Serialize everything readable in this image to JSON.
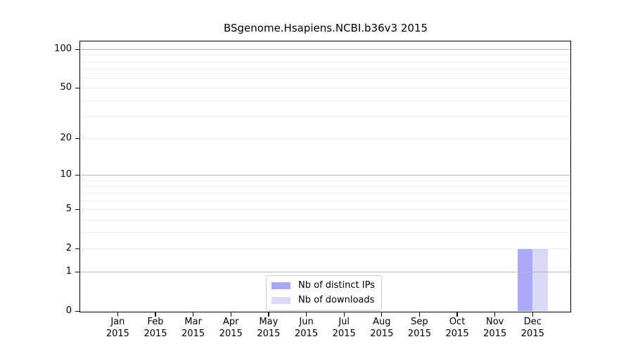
{
  "title": "BSgenome.Hsapiens.NCBI.b36v3 2015",
  "chart_data": {
    "type": "bar",
    "title": "BSgenome.Hsapiens.NCBI.b36v3 2015",
    "categories": [
      "Jan 2015",
      "Feb 2015",
      "Mar 2015",
      "Apr 2015",
      "May 2015",
      "Jun 2015",
      "Jul 2015",
      "Aug 2015",
      "Sep 2015",
      "Oct 2015",
      "Nov 2015",
      "Dec 2015"
    ],
    "x_tick_months": [
      "Jan",
      "Feb",
      "Mar",
      "Apr",
      "May",
      "Jun",
      "Jul",
      "Aug",
      "Sep",
      "Oct",
      "Nov",
      "Dec"
    ],
    "x_tick_year": "2015",
    "series": [
      {
        "name": "Nb of distinct IPs",
        "color": "#a9a9f7",
        "values": [
          0,
          0,
          0,
          0,
          0,
          0,
          0,
          0,
          0,
          0,
          0,
          2
        ]
      },
      {
        "name": "Nb of downloads",
        "color": "#d9d9f7",
        "values": [
          0,
          0,
          0,
          0,
          0,
          0,
          0,
          0,
          0,
          0,
          0,
          2
        ]
      }
    ],
    "xlabel": "",
    "ylabel": "",
    "y_scale": "log1p",
    "ylim": [
      0,
      115
    ],
    "y_tick_values": [
      0,
      1,
      2,
      5,
      10,
      20,
      50,
      100
    ],
    "y_major_gridlines": [
      1,
      10,
      100
    ],
    "y_minor_gridlines": [
      2,
      3,
      4,
      5,
      6,
      7,
      8,
      9,
      20,
      30,
      40,
      50,
      60,
      70,
      80,
      90
    ],
    "grid": "on",
    "legend_position": "bottom-center"
  },
  "colors": {
    "bar_distinct_ips": "#a9a9f7",
    "bar_downloads": "#d9d9f7",
    "major_grid": "#b9b9b9",
    "minor_grid": "#ececec",
    "axis": "#000000",
    "legend_border": "#cccccc"
  }
}
